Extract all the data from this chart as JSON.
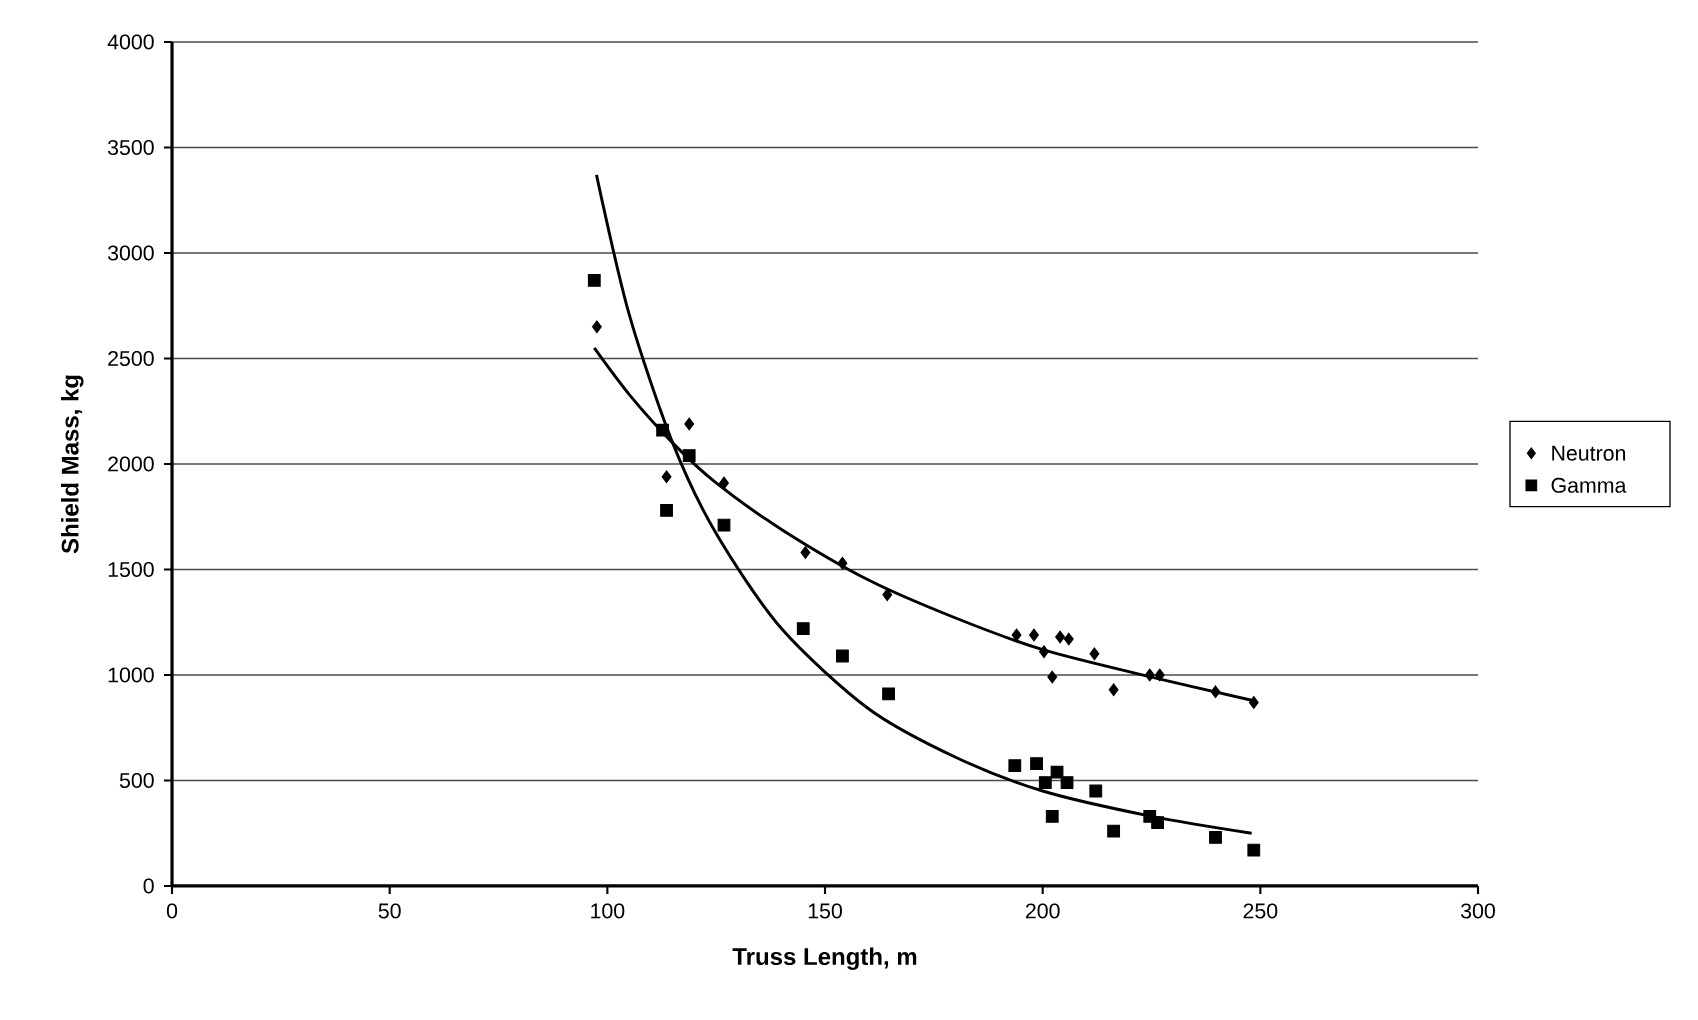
{
  "chart_data": {
    "type": "scatter",
    "xlabel": "Truss Length, m",
    "ylabel": "Shield Mass, kg",
    "xlim": [
      0,
      300
    ],
    "xticks": [
      0,
      50,
      100,
      150,
      200,
      250,
      300
    ],
    "ylim": [
      0,
      4000
    ],
    "yticks": [
      0,
      500,
      1000,
      1500,
      2000,
      2500,
      3000,
      3500,
      4000
    ],
    "grid": "y",
    "legend": "right",
    "series": [
      {
        "name": "Neutron",
        "marker": "diamond",
        "color": "#000000",
        "x": [
          97.6,
          113.6,
          118.8,
          126.8,
          145.5,
          154,
          164.3,
          194,
          198,
          200.3,
          202.2,
          204,
          206,
          211.9,
          216.3,
          224.6,
          226.9,
          239.7,
          248.5
        ],
        "values": [
          2650,
          1940,
          2190,
          1910,
          1580,
          1530,
          1380,
          1190,
          1190,
          1110,
          990,
          1180,
          1170,
          1100,
          930,
          1000,
          1000,
          920,
          870
        ]
      },
      {
        "name": "Gamma",
        "marker": "square",
        "color": "#000000",
        "x": [
          97,
          112.7,
          113.6,
          118.8,
          126.8,
          145,
          154,
          164.6,
          193.6,
          198.6,
          200.6,
          203.3,
          205.6,
          202.2,
          212.2,
          216.3,
          224.6,
          226.4,
          239.7,
          248.5
        ],
        "values": [
          2870,
          2160,
          1780,
          2040,
          1710,
          1220,
          1090,
          910,
          570,
          580,
          490,
          540,
          490,
          330,
          450,
          260,
          330,
          300,
          230,
          170
        ]
      },
      {
        "type": "line",
        "marker": "none",
        "line_style": "solid",
        "color": "#000000",
        "x": [
          97,
          105,
          115,
          125,
          140,
          160,
          180,
          200,
          225,
          248
        ],
        "values": [
          2550,
          2330,
          2100,
          1910,
          1690,
          1450,
          1270,
          1120,
          990,
          880
        ]
      },
      {
        "type": "line",
        "marker": "none",
        "line_style": "solid",
        "color": "#000000",
        "x": [
          97.5,
          105,
          115,
          125,
          140,
          160,
          180,
          200,
          225,
          248
        ],
        "values": [
          3370,
          2710,
          2100,
          1670,
          1220,
          840,
          610,
          450,
          330,
          250
        ]
      }
    ]
  }
}
